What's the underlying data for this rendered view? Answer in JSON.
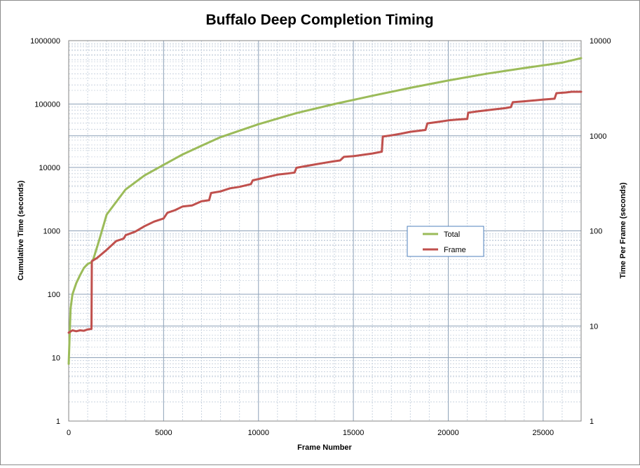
{
  "chart_data": {
    "type": "line",
    "title": "Buffalo Deep Completion Timing",
    "xlabel": "Frame Number",
    "ylabel_left": "Cumulative Time (seconds)",
    "ylabel_right": "Time Per Frame (seconds)",
    "xlim": [
      0,
      27000
    ],
    "x_ticks": [
      0,
      5000,
      10000,
      15000,
      20000,
      25000
    ],
    "left_axis": {
      "scale": "log",
      "ylim": [
        1,
        1000000
      ],
      "ticks": [
        1,
        10,
        100,
        1000,
        10000,
        100000,
        1000000
      ]
    },
    "right_axis": {
      "scale": "log",
      "ylim": [
        1,
        10000
      ],
      "ticks": [
        1,
        10,
        100,
        1000,
        10000
      ]
    },
    "grid": true,
    "legend": {
      "placement": "center-right",
      "entries": [
        "Total",
        "Frame"
      ]
    },
    "series": [
      {
        "name": "Total",
        "axis": "left",
        "color": "#9bbb59",
        "x": [
          0,
          100,
          200,
          400,
          600,
          800,
          1000,
          1200,
          1300,
          1600,
          2000,
          3000,
          4000,
          5000,
          6000,
          7000,
          8000,
          10000,
          12000,
          14000,
          16000,
          18000,
          20000,
          22000,
          24000,
          26000,
          27000
        ],
        "y": [
          8,
          60,
          100,
          150,
          200,
          260,
          300,
          320,
          360,
          700,
          1800,
          4500,
          7500,
          11000,
          16000,
          22000,
          30000,
          48000,
          72000,
          100000,
          135000,
          180000,
          235000,
          300000,
          370000,
          450000,
          530000
        ]
      },
      {
        "name": "Frame",
        "axis": "right",
        "color": "#c0504d",
        "x": [
          0,
          200,
          400,
          600,
          800,
          1000,
          1200,
          1220,
          1500,
          2000,
          2500,
          2900,
          3000,
          3500,
          4000,
          4500,
          5000,
          5200,
          5600,
          6000,
          6500,
          7000,
          7400,
          7500,
          8000,
          8500,
          9000,
          9600,
          9700,
          10000,
          10500,
          11000,
          11500,
          11900,
          12000,
          12500,
          13000,
          13500,
          14000,
          14300,
          14500,
          15000,
          15500,
          16000,
          16500,
          16550,
          17000,
          17500,
          18000,
          18800,
          18900,
          19500,
          20000,
          20500,
          21000,
          21050,
          21500,
          22000,
          22500,
          23000,
          23300,
          23400,
          24000,
          24500,
          25000,
          25600,
          25700,
          26200,
          26500,
          27000
        ],
        "y": [
          8.5,
          9,
          8.8,
          9,
          8.9,
          9.2,
          9.3,
          48,
          52,
          63,
          78,
          83,
          90,
          98,
          112,
          125,
          135,
          155,
          165,
          180,
          185,
          205,
          210,
          250,
          260,
          280,
          290,
          310,
          340,
          350,
          370,
          390,
          400,
          410,
          460,
          480,
          500,
          520,
          540,
          550,
          600,
          610,
          630,
          650,
          680,
          980,
          1010,
          1050,
          1100,
          1150,
          1350,
          1400,
          1450,
          1480,
          1500,
          1750,
          1800,
          1850,
          1900,
          1950,
          2000,
          2250,
          2300,
          2350,
          2400,
          2450,
          2800,
          2850,
          2900,
          2900
        ]
      }
    ]
  }
}
